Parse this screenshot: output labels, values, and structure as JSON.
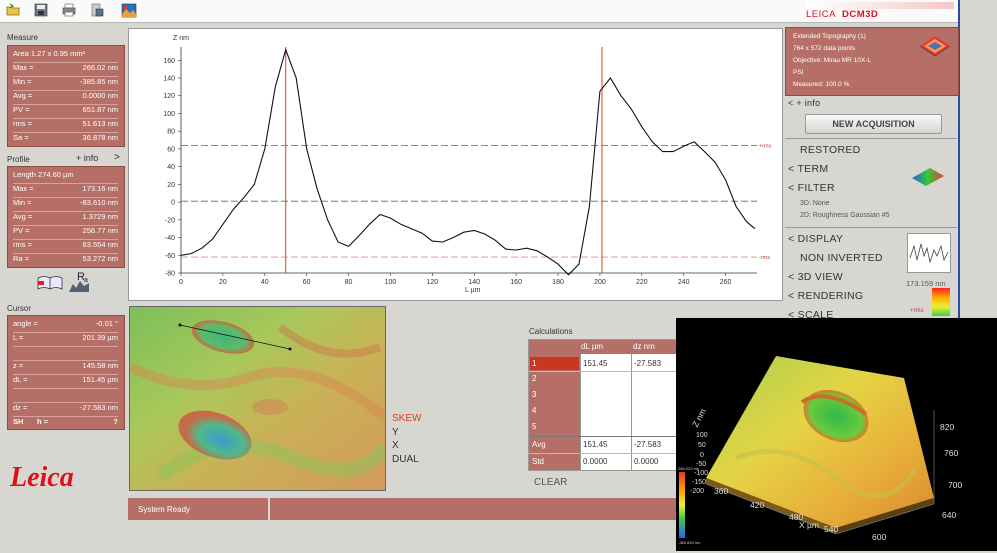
{
  "toolbar": {
    "icons": [
      "open-folder-icon",
      "save-icon",
      "print-icon",
      "export-icon",
      "image-icon"
    ]
  },
  "brand": {
    "name": "LEICA",
    "product": "DCM3D"
  },
  "measure": {
    "title": "Measure",
    "area": "Area 1.27 x 0.95 mm²",
    "rows": [
      {
        "k": "Max =",
        "v": "266.02 nm"
      },
      {
        "k": "Min =",
        "v": "-385.85 nm"
      },
      {
        "k": "Avg =",
        "v": "0.0000 nm"
      },
      {
        "k": "PV =",
        "v": "651.87 nm"
      },
      {
        "k": "rms =",
        "v": "51.613 nm"
      },
      {
        "k": "Sa =",
        "v": "36.878 nm"
      }
    ]
  },
  "profile": {
    "title": "Profile",
    "info": "+ info",
    "arrow": ">",
    "length": "Length 274.60 µm",
    "rows": [
      {
        "k": "Max =",
        "v": "173.16 nm"
      },
      {
        "k": "Min =",
        "v": "-83.610 nm"
      },
      {
        "k": "Avg =",
        "v": "1.3729 nm"
      },
      {
        "k": "PV =",
        "v": "256.77 nm"
      },
      {
        "k": "rms =",
        "v": "63.554 nm"
      },
      {
        "k": "Ra =",
        "v": "53.272 nm"
      }
    ]
  },
  "profile_icons": {
    "ra_label": "R",
    "ra_sub": "a"
  },
  "cursor": {
    "title": "Cursor",
    "rows": [
      {
        "k": "angle =",
        "v": "-0.01 °"
      },
      {
        "k": "L =",
        "v": "201.39 µm"
      },
      {
        "k": "",
        "v": ""
      },
      {
        "k": "z =",
        "v": "145.58 nm"
      },
      {
        "k": "dL =",
        "v": "151.45 µm"
      },
      {
        "k": "",
        "v": ""
      },
      {
        "k": "dz =",
        "v": "-27.583 nm"
      }
    ],
    "footer_left": "SH",
    "footer_mid": "h =",
    "footer_right": "?"
  },
  "chart_data": {
    "type": "line",
    "ylabel": "Z nm",
    "xlabel": "L µm",
    "xlim": [
      0,
      275
    ],
    "ylim": [
      -80,
      175
    ],
    "xticks": [
      0,
      20,
      40,
      60,
      80,
      100,
      120,
      140,
      160,
      180,
      200,
      220,
      240,
      260
    ],
    "yticks": [
      -80,
      -60,
      -40,
      -20,
      0,
      20,
      40,
      60,
      80,
      100,
      120,
      140,
      160
    ],
    "x": [
      0,
      5,
      10,
      15,
      20,
      25,
      30,
      35,
      40,
      45,
      50,
      55,
      60,
      65,
      70,
      75,
      80,
      85,
      90,
      95,
      100,
      105,
      110,
      115,
      120,
      125,
      130,
      135,
      140,
      145,
      150,
      155,
      160,
      165,
      170,
      175,
      180,
      185,
      190,
      195,
      200,
      205,
      210,
      215,
      220,
      225,
      230,
      235,
      240,
      245,
      250,
      255,
      260,
      265,
      270,
      274
    ],
    "y": [
      -60,
      -58,
      -52,
      -42,
      -25,
      -8,
      5,
      20,
      60,
      130,
      172,
      140,
      60,
      15,
      -20,
      -45,
      -50,
      -38,
      -25,
      -14,
      -18,
      -25,
      -30,
      -35,
      -44,
      -45,
      -40,
      -34,
      -32,
      -36,
      -43,
      -53,
      -54,
      -52,
      -55,
      -62,
      -70,
      -82,
      -70,
      -5,
      125,
      140,
      120,
      105,
      85,
      68,
      57,
      57,
      63,
      68,
      57,
      45,
      25,
      -5,
      -22,
      -30
    ],
    "hlines": [
      {
        "name": "+rms",
        "value": 64,
        "color": "#c0392b",
        "style": "dashed"
      },
      {
        "name": "avg",
        "value": 1,
        "color": "#2e8b3a",
        "style": "dashed"
      },
      {
        "name": "-rms",
        "value": -62,
        "color": "#e08a80",
        "style": "dashed"
      }
    ],
    "cursors": [
      50,
      201
    ],
    "hline_labels": {
      "upper": "+rms",
      "lower": "-rms"
    },
    "line_color": "#111111",
    "cursor_color": "#d2451e"
  },
  "info_box": {
    "lines": [
      "Extended Topography (1)",
      "764 x 572 data points",
      "Objective: Mirau MR 10X-L",
      "PSI",
      "Measured: 100.0 %"
    ]
  },
  "right_panel": {
    "less_info": "< + info",
    "new_acq": "NEW ACQUISITION",
    "restored": "RESTORED",
    "term": "< TERM",
    "filter": "< FILTER",
    "filter_3d": "3D: None",
    "filter_2d": "2D: Roughness Gaussian  #5",
    "display": "< DISPLAY",
    "non_inverted": "NON INVERTED",
    "view3d": "< 3D VIEW",
    "rendering": "< RENDERING",
    "scale": "< SCALE",
    "scale_value": "173.159 nm",
    "rms_mark": "+rms"
  },
  "view_options": [
    "SKEW",
    "Y",
    "X",
    "DUAL"
  ],
  "calculations": {
    "title": "Calculations",
    "headers": [
      "",
      "dL µm",
      "dz nm"
    ],
    "rows": [
      [
        "1",
        "151.45",
        "-27.583"
      ],
      [
        "2",
        "",
        ""
      ],
      [
        "3",
        "",
        ""
      ],
      [
        "4",
        "",
        ""
      ],
      [
        "5",
        "",
        ""
      ]
    ],
    "summary": [
      [
        "Avg",
        "151.45",
        "-27.583"
      ],
      [
        "Std",
        "0.0000",
        "0.0000"
      ]
    ],
    "clear": "CLEAR"
  },
  "status": {
    "text": "System Ready"
  },
  "overlay3d": {
    "z_label": "Z nm",
    "z_ticks": [
      "100",
      "50",
      "0",
      "-50",
      "-100",
      "-150",
      "-200"
    ],
    "x_label": "X µm",
    "x_ticks": [
      "360",
      "420",
      "480",
      "540",
      "600"
    ],
    "y_ticks": [
      "820",
      "760",
      "700",
      "640"
    ],
    "legend_top": "266.023 nm",
    "legend_bottom": "-385.849 nm"
  },
  "logo": {
    "text": "Leica"
  },
  "colors": {
    "panel": "#b56f66",
    "accent": "#d2451e",
    "brand_red": "#e0101a"
  }
}
